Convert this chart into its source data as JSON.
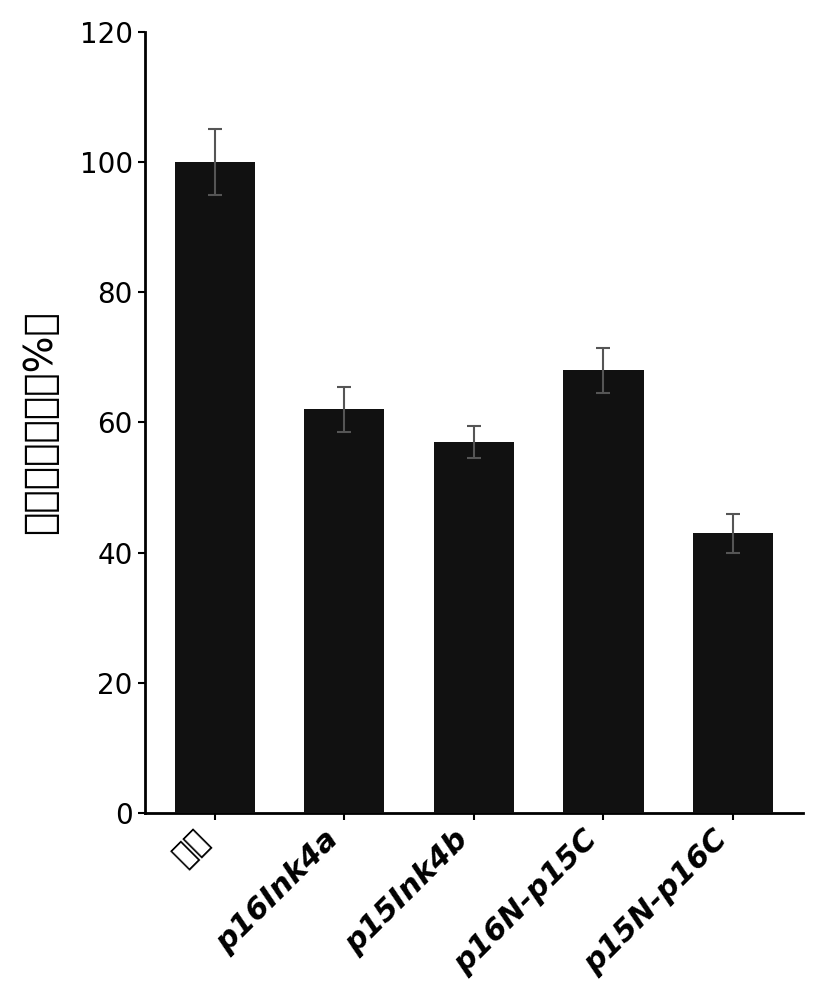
{
  "categories": [
    "对照",
    "p16Ink4a",
    "p15Ink4b",
    "p16N-p15C",
    "p15N-p16C"
  ],
  "values": [
    100,
    62,
    57,
    68,
    43
  ],
  "errors": [
    5,
    3.5,
    2.5,
    3.5,
    3
  ],
  "bar_color": "#111111",
  "error_color": "#555555",
  "ylabel": "相对细胞活力（%）",
  "ylim": [
    0,
    120
  ],
  "yticks": [
    0,
    20,
    40,
    60,
    80,
    100,
    120
  ],
  "ylabel_fontsize": 28,
  "tick_fontsize": 20,
  "xtick_fontsize": 22,
  "bar_width": 0.62,
  "figsize": [
    8.24,
    10.0
  ],
  "dpi": 100
}
